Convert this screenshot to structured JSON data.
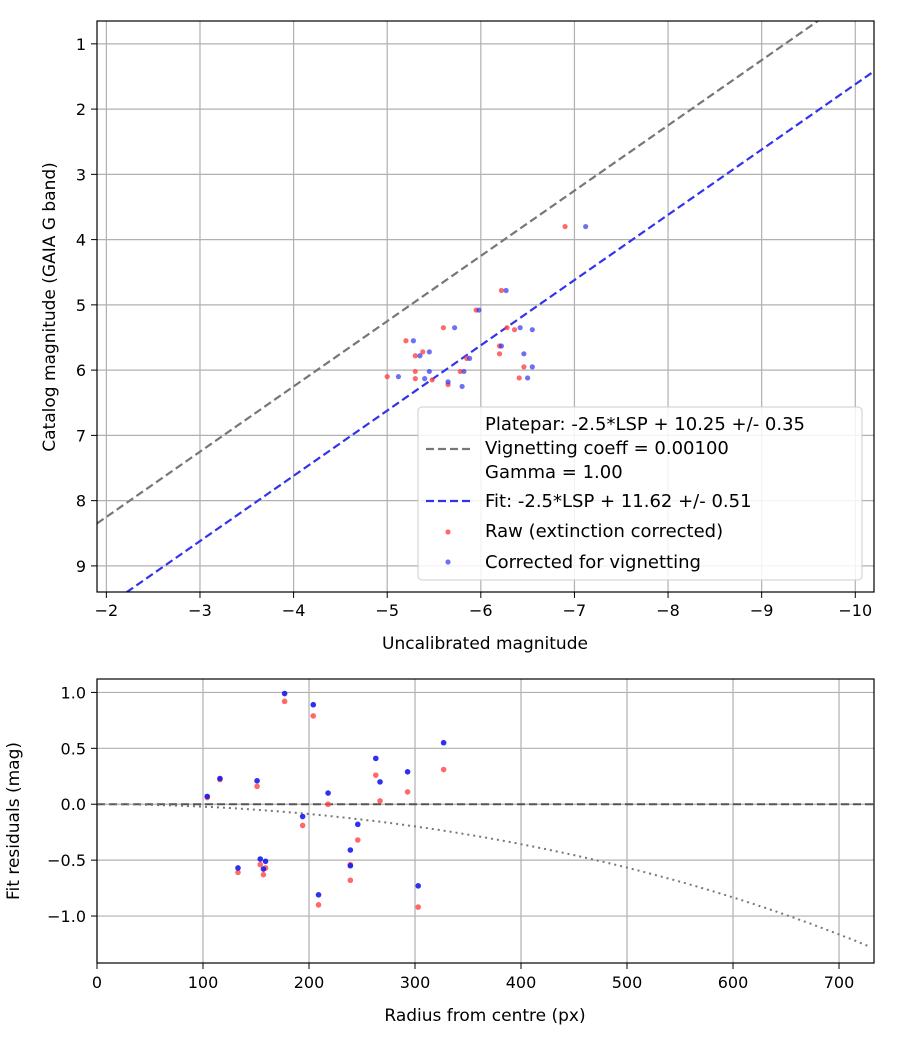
{
  "chart_data": [
    {
      "type": "scatter",
      "title": "",
      "xlabel": "Uncalibrated magnitude",
      "ylabel": "Catalog magnitude (GAIA G band)",
      "xlim": [
        -1.9,
        -10.2
      ],
      "ylim": [
        0.65,
        9.4
      ],
      "x_inverted": true,
      "y_inverted": true,
      "grid": true,
      "legend_placement": "lower-right",
      "x_ticks": [
        -2,
        -3,
        -4,
        -5,
        -6,
        -7,
        -8,
        -9,
        -10
      ],
      "x_tick_labels": [
        "−2",
        "−3",
        "−4",
        "−5",
        "−6",
        "−7",
        "−8",
        "−9",
        "−10"
      ],
      "y_ticks": [
        1,
        2,
        3,
        4,
        5,
        6,
        7,
        8,
        9
      ],
      "y_tick_labels": [
        "1",
        "2",
        "3",
        "4",
        "5",
        "6",
        "7",
        "8",
        "9"
      ],
      "legend": {
        "platepar_line1": "Platepar: -2.5*LSP + 10.25 +/- 0.35",
        "platepar_line2": "Vignetting coeff = 0.00100",
        "platepar_line3": "Gamma = 1.00",
        "fit": "Fit: -2.5*LSP + 11.62 +/- 0.51",
        "raw": "Raw (extinction corrected)",
        "corrected": "Corrected for vignetting"
      },
      "lines": [
        {
          "name": "platepar",
          "intercept": 10.25,
          "color": "#777777"
        },
        {
          "name": "fit",
          "intercept": 11.62,
          "color": "#3333ee"
        }
      ],
      "series": [
        {
          "name": "Raw (extinction corrected)",
          "color": "#ff4444",
          "points": [
            [
              -6.9,
              3.8
            ],
            [
              -6.22,
              4.78
            ],
            [
              -5.95,
              5.08
            ],
            [
              -5.6,
              5.35
            ],
            [
              -6.28,
              5.35
            ],
            [
              -5.2,
              5.55
            ],
            [
              -6.36,
              5.38
            ],
            [
              -5.3,
              5.78
            ],
            [
              -5.38,
              5.72
            ],
            [
              -5.85,
              5.82
            ],
            [
              -6.2,
              5.63
            ],
            [
              -6.2,
              5.75
            ],
            [
              -5.3,
              6.02
            ],
            [
              -6.46,
              5.95
            ],
            [
              -5.0,
              6.1
            ],
            [
              -5.3,
              6.13
            ],
            [
              -5.48,
              6.15
            ],
            [
              -5.65,
              6.22
            ],
            [
              -6.41,
              6.12
            ],
            [
              -5.78,
              6.02
            ]
          ]
        },
        {
          "name": "Corrected for vignetting",
          "color": "#3333ee",
          "points": [
            [
              -7.12,
              3.8
            ],
            [
              -6.27,
              4.78
            ],
            [
              -5.98,
              5.08
            ],
            [
              -5.72,
              5.35
            ],
            [
              -6.55,
              5.38
            ],
            [
              -5.28,
              5.55
            ],
            [
              -6.42,
              5.35
            ],
            [
              -5.35,
              5.78
            ],
            [
              -5.45,
              5.72
            ],
            [
              -5.88,
              5.82
            ],
            [
              -6.22,
              5.63
            ],
            [
              -6.46,
              5.75
            ],
            [
              -5.45,
              6.02
            ],
            [
              -6.55,
              5.95
            ],
            [
              -5.12,
              6.1
            ],
            [
              -5.4,
              6.13
            ],
            [
              -6.5,
              6.12
            ],
            [
              -5.82,
              6.02
            ],
            [
              -5.8,
              6.25
            ],
            [
              -5.65,
              6.18
            ]
          ]
        }
      ]
    },
    {
      "type": "scatter",
      "title": "",
      "xlabel": "Radius from centre (px)",
      "ylabel": "Fit residuals (mag)",
      "xlim": [
        0,
        733
      ],
      "ylim": [
        -1.42,
        1.12
      ],
      "grid": true,
      "x_ticks": [
        0,
        100,
        200,
        300,
        400,
        500,
        600,
        700
      ],
      "x_tick_labels": [
        "0",
        "100",
        "200",
        "300",
        "400",
        "500",
        "600",
        "700"
      ],
      "y_ticks": [
        1.0,
        0.5,
        0.0,
        -0.5,
        -1.0
      ],
      "y_tick_labels": [
        "1.0",
        "0.5",
        "0.0",
        "−0.5",
        "−1.0"
      ],
      "zero_line_color": "#555555",
      "vignetting_curve": {
        "coeff": 0.001,
        "color": "#777777"
      },
      "series": [
        {
          "name": "Raw",
          "color": "#ff4444",
          "points": [
            [
              104,
              0.06
            ],
            [
              116,
              0.22
            ],
            [
              133,
              -0.61
            ],
            [
              151,
              0.16
            ],
            [
              154,
              -0.54
            ],
            [
              157,
              -0.63
            ],
            [
              159,
              -0.57
            ],
            [
              177,
              0.92
            ],
            [
              194,
              -0.19
            ],
            [
              204,
              0.79
            ],
            [
              209,
              -0.9
            ],
            [
              218,
              0.0
            ],
            [
              239,
              -0.54
            ],
            [
              239,
              -0.68
            ],
            [
              246,
              -0.32
            ],
            [
              263,
              0.26
            ],
            [
              267,
              0.03
            ],
            [
              293,
              0.11
            ],
            [
              303,
              -0.92
            ],
            [
              327,
              0.31
            ]
          ]
        },
        {
          "name": "Corrected",
          "color": "#1a1aee",
          "points": [
            [
              104,
              0.07
            ],
            [
              116,
              0.23
            ],
            [
              133,
              -0.57
            ],
            [
              151,
              0.21
            ],
            [
              154,
              -0.49
            ],
            [
              157,
              -0.58
            ],
            [
              159,
              -0.51
            ],
            [
              177,
              0.99
            ],
            [
              194,
              -0.11
            ],
            [
              204,
              0.89
            ],
            [
              209,
              -0.81
            ],
            [
              218,
              0.1
            ],
            [
              239,
              -0.41
            ],
            [
              239,
              -0.55
            ],
            [
              246,
              -0.18
            ],
            [
              263,
              0.41
            ],
            [
              267,
              0.2
            ],
            [
              293,
              0.29
            ],
            [
              303,
              -0.73
            ],
            [
              327,
              0.55
            ]
          ]
        }
      ]
    }
  ]
}
